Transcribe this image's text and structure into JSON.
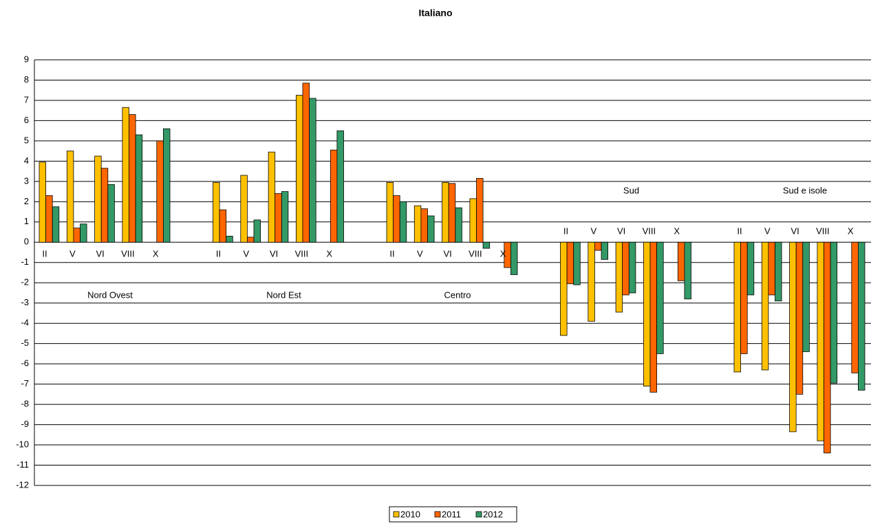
{
  "chart_data": {
    "type": "bar",
    "title": "Italiano",
    "groups": [
      "Nord Ovest",
      "Nord Est",
      "Centro",
      "Sud",
      "Sud e isole"
    ],
    "categories": [
      "II",
      "V",
      "VI",
      "VIII",
      "X",
      "II",
      "V",
      "VI",
      "VIII",
      "X",
      "II",
      "V",
      "VI",
      "VIII",
      "X",
      "II",
      "V",
      "VI",
      "VIII",
      "X",
      "II",
      "V",
      "VI",
      "VIII",
      "X"
    ],
    "series": [
      {
        "name": "2010",
        "color": "#ffc000",
        "values": [
          3.95,
          4.5,
          4.25,
          6.65,
          null,
          2.95,
          3.3,
          4.45,
          7.25,
          null,
          2.95,
          1.8,
          2.95,
          2.15,
          null,
          -4.6,
          -3.9,
          -3.45,
          -7.1,
          null,
          -6.4,
          -6.3,
          -9.35,
          -9.8,
          null
        ]
      },
      {
        "name": "2011",
        "color": "#ff6600",
        "values": [
          2.3,
          0.7,
          3.65,
          6.3,
          5.0,
          1.6,
          0.25,
          2.4,
          7.85,
          4.55,
          2.3,
          1.65,
          2.9,
          3.15,
          -1.25,
          -2.05,
          -0.4,
          -2.6,
          -7.4,
          -1.9,
          -5.5,
          -2.6,
          -7.5,
          -10.4,
          -6.45
        ]
      },
      {
        "name": "2012",
        "color": "#339966",
        "values": [
          1.75,
          0.9,
          2.85,
          5.3,
          5.6,
          0.3,
          1.1,
          2.5,
          7.1,
          5.5,
          2.0,
          1.3,
          1.7,
          -0.3,
          -1.6,
          -2.1,
          -0.85,
          -2.5,
          -5.5,
          -2.8,
          -2.6,
          -2.9,
          -5.4,
          -6.95,
          -7.3
        ]
      }
    ],
    "ylim": [
      -12,
      9
    ],
    "yticks": [
      -12,
      -11,
      -10,
      -9,
      -8,
      -7,
      -6,
      -5,
      -4,
      -3,
      -2,
      -1,
      0,
      1,
      2,
      3,
      4,
      5,
      6,
      7,
      8,
      9
    ],
    "grid": true,
    "legend": "bottom"
  }
}
